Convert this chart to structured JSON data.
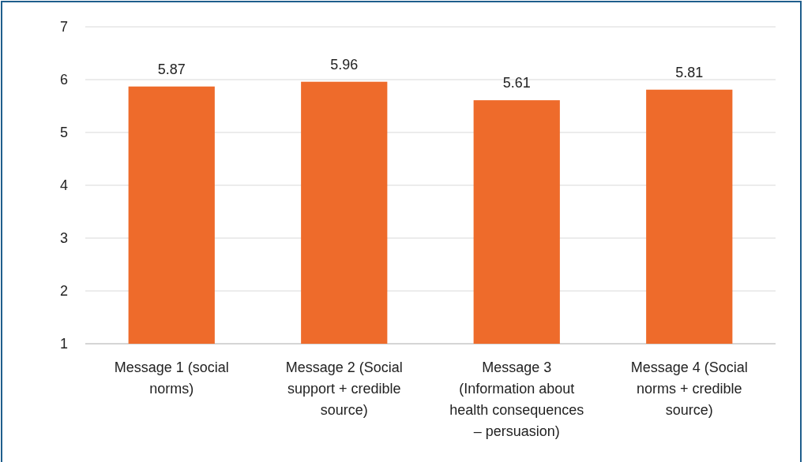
{
  "chart_data": {
    "type": "bar",
    "categories": [
      "Message 1 (social norms)",
      "Message 2 (Social support + credible source)",
      "Message 3 (Information about health consequences – persuasion)",
      "Message 4 (Social norms + credible source)"
    ],
    "values": [
      5.87,
      5.96,
      5.61,
      5.81
    ],
    "color": "#ee6b2b",
    "ylim": [
      1,
      7
    ],
    "yticks": [
      1,
      2,
      3,
      4,
      5,
      6,
      7
    ],
    "grid": "y",
    "data_labels": true
  }
}
